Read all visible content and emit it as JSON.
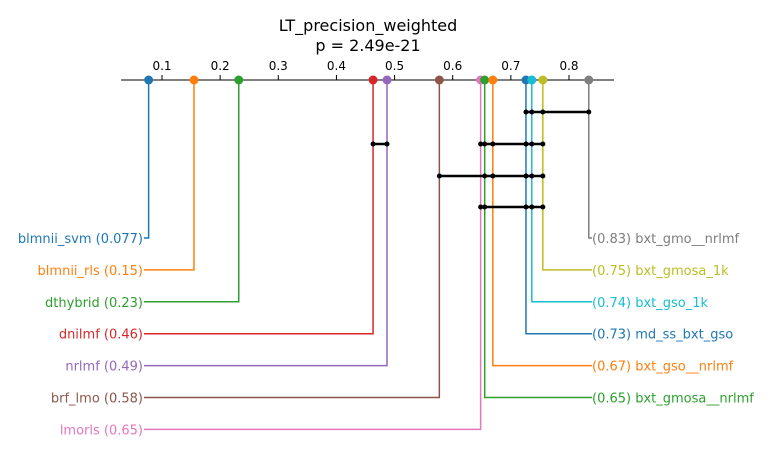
{
  "chart_data": {
    "type": "critical-difference-diagram",
    "title": "LT_precision_weighted",
    "subtitle": "p = 2.49e-21",
    "axis": {
      "range": [
        0.0,
        0.9
      ],
      "ticks": [
        0.1,
        0.2,
        0.3,
        0.4,
        0.5,
        0.6,
        0.7,
        0.8
      ],
      "tick_labels": [
        "0.1",
        "0.2",
        "0.3",
        "0.4",
        "0.5",
        "0.6",
        "0.7",
        "0.8"
      ]
    },
    "methods": [
      {
        "name": "blmnii_svm",
        "value": 0.077,
        "label": "blmnii_svm (0.077)",
        "color": "#1f77b4",
        "side": "left"
      },
      {
        "name": "blmnii_rls",
        "value": 0.155,
        "label": "blmnii_rls (0.15)",
        "color": "#ff7f0e",
        "side": "left"
      },
      {
        "name": "dthybrid",
        "value": 0.232,
        "label": "dthybrid (0.23)",
        "color": "#2ca02c",
        "side": "left"
      },
      {
        "name": "dnilmf",
        "value": 0.463,
        "label": "dnilmf (0.46)",
        "color": "#d62728",
        "side": "left"
      },
      {
        "name": "nrlmf",
        "value": 0.487,
        "label": "nrlmf (0.49)",
        "color": "#9467bd",
        "side": "left"
      },
      {
        "name": "brf_lmo",
        "value": 0.577,
        "label": "brf_lmo (0.58)",
        "color": "#8c564b",
        "side": "left"
      },
      {
        "name": "lmorls",
        "value": 0.648,
        "label": "lmorls (0.65)",
        "color": "#e377c2",
        "side": "left"
      },
      {
        "name": "bxt_gmosa__nrlmf",
        "value": 0.655,
        "label": "(0.65) bxt_gmosa__nrlmf",
        "color": "#2ca02c",
        "side": "right"
      },
      {
        "name": "bxt_gso__nrlmf",
        "value": 0.669,
        "label": "(0.67) bxt_gso__nrlmf",
        "color": "#ff7f0e",
        "side": "right"
      },
      {
        "name": "md_ss_bxt_gso",
        "value": 0.726,
        "label": "(0.73) md_ss_bxt_gso",
        "color": "#1f77b4",
        "side": "right"
      },
      {
        "name": "bxt_gso_1k",
        "value": 0.736,
        "label": "(0.74) bxt_gso_1k",
        "color": "#17becf",
        "side": "right"
      },
      {
        "name": "bxt_gmosa_1k",
        "value": 0.755,
        "label": "(0.75) bxt_gmosa_1k",
        "color": "#bcbd22",
        "side": "right"
      },
      {
        "name": "bxt_gmo__nrlmf",
        "value": 0.834,
        "label": "(0.83) bxt_gmo__nrlmf",
        "color": "#7f7f7f",
        "side": "right"
      }
    ],
    "cliques": [
      {
        "from": 0.726,
        "to": 0.834,
        "points": [
          0.726,
          0.736,
          0.755,
          0.834
        ]
      },
      {
        "from": 0.463,
        "to": 0.487,
        "points": [
          0.463,
          0.487
        ]
      },
      {
        "from": 0.648,
        "to": 0.755,
        "points": [
          0.648,
          0.655,
          0.669,
          0.726,
          0.736,
          0.755
        ]
      },
      {
        "from": 0.577,
        "to": 0.755,
        "points": [
          0.577,
          0.655,
          0.669,
          0.726,
          0.736,
          0.755
        ]
      },
      {
        "from": 0.648,
        "to": 0.755,
        "points": [
          0.648,
          0.655,
          0.726,
          0.736,
          0.755
        ]
      }
    ]
  }
}
